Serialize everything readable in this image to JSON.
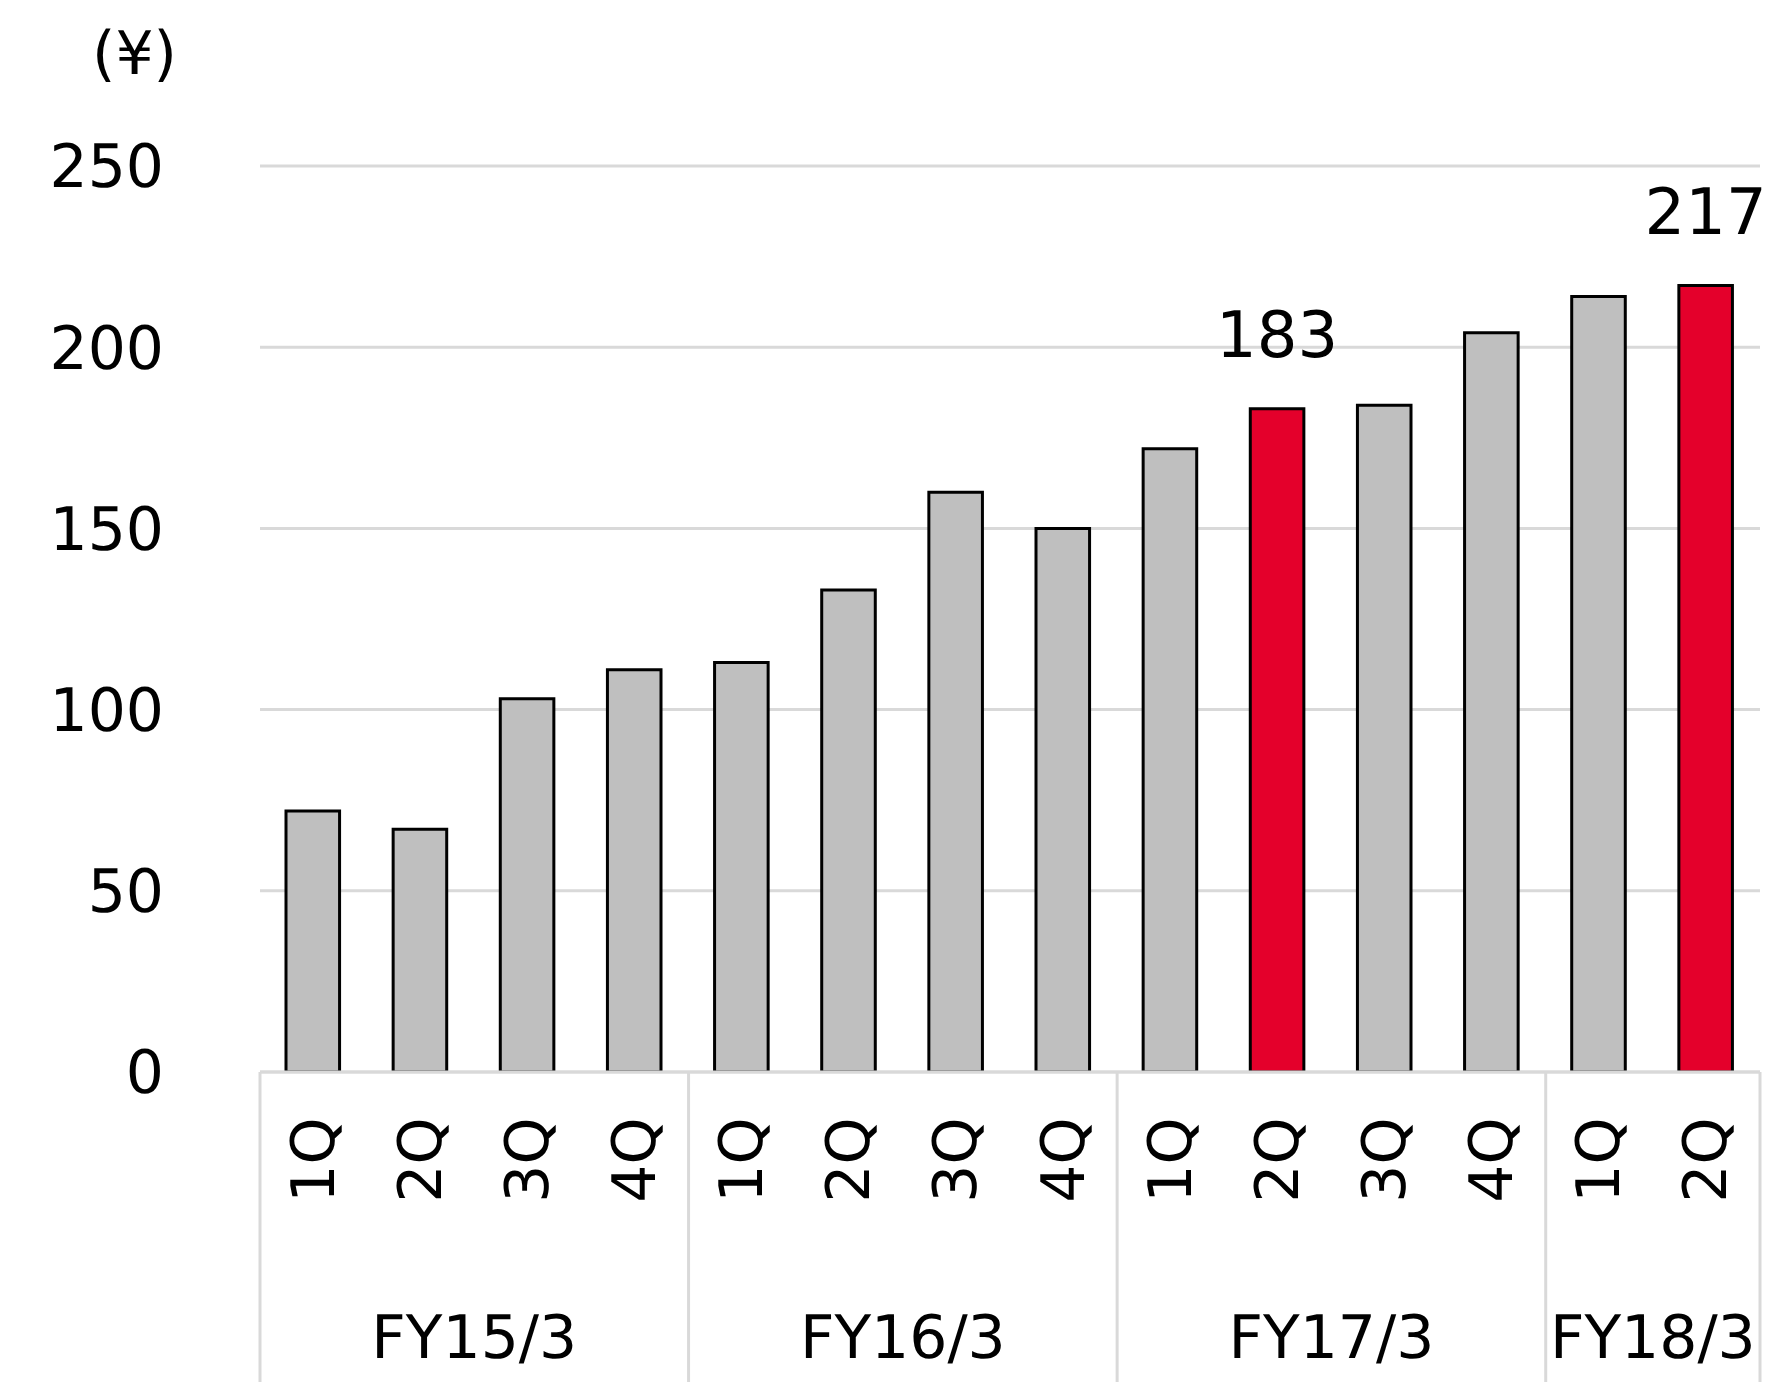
{
  "chart_data": {
    "type": "bar",
    "ylabel": "(¥)",
    "categories": [
      "1Q",
      "2Q",
      "3Q",
      "4Q",
      "1Q",
      "2Q",
      "3Q",
      "4Q",
      "1Q",
      "2Q",
      "3Q",
      "4Q",
      "1Q",
      "2Q"
    ],
    "series": [
      {
        "colors": [
          "#bfbfbf",
          "#bfbfbf",
          "#bfbfbf",
          "#bfbfbf",
          "#bfbfbf",
          "#bfbfbf",
          "#bfbfbf",
          "#bfbfbf",
          "#bfbfbf",
          "#e4002b",
          "#bfbfbf",
          "#bfbfbf",
          "#bfbfbf",
          "#e4002b"
        ],
        "values": [
          72,
          67,
          103,
          111,
          113,
          133,
          160,
          150,
          172,
          183,
          184,
          204,
          214,
          217
        ],
        "value_labels": [
          null,
          null,
          null,
          null,
          null,
          null,
          null,
          null,
          null,
          "183",
          null,
          null,
          null,
          "217"
        ]
      }
    ],
    "annotations": [
      "FY15/3",
      "FY16/3",
      "FY17/3",
      "FY18/3"
    ],
    "ylim": [
      0,
      250
    ],
    "yticks": [
      0,
      50,
      100,
      150,
      200,
      250
    ],
    "grid": "y"
  }
}
